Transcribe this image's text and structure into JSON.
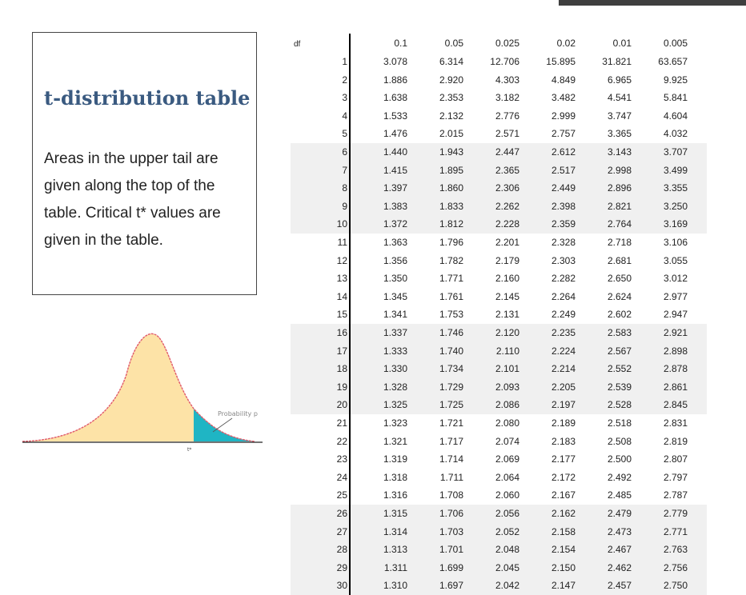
{
  "info": {
    "title": "t-distribution table",
    "description": "Areas in the upper tail are given along the top of the table. Critical t* values are given in the table."
  },
  "figure": {
    "probability_label": "Probability p",
    "tstar_label": "t*",
    "colors": {
      "body": "#fde3a7",
      "tail": "#1fb5c4",
      "outline": "#e05a6a"
    }
  },
  "table": {
    "df_header": "df",
    "tail_areas": [
      "0.1",
      "0.05",
      "0.025",
      "0.02",
      "0.01",
      "0.005"
    ],
    "rows": [
      {
        "df": "1",
        "values": [
          "3.078",
          "6.314",
          "12.706",
          "15.895",
          "31.821",
          "63.657"
        ]
      },
      {
        "df": "2",
        "values": [
          "1.886",
          "2.920",
          "4.303",
          "4.849",
          "6.965",
          "9.925"
        ]
      },
      {
        "df": "3",
        "values": [
          "1.638",
          "2.353",
          "3.182",
          "3.482",
          "4.541",
          "5.841"
        ]
      },
      {
        "df": "4",
        "values": [
          "1.533",
          "2.132",
          "2.776",
          "2.999",
          "3.747",
          "4.604"
        ]
      },
      {
        "df": "5",
        "values": [
          "1.476",
          "2.015",
          "2.571",
          "2.757",
          "3.365",
          "4.032"
        ]
      },
      {
        "df": "6",
        "values": [
          "1.440",
          "1.943",
          "2.447",
          "2.612",
          "3.143",
          "3.707"
        ]
      },
      {
        "df": "7",
        "values": [
          "1.415",
          "1.895",
          "2.365",
          "2.517",
          "2.998",
          "3.499"
        ]
      },
      {
        "df": "8",
        "values": [
          "1.397",
          "1.860",
          "2.306",
          "2.449",
          "2.896",
          "3.355"
        ]
      },
      {
        "df": "9",
        "values": [
          "1.383",
          "1.833",
          "2.262",
          "2.398",
          "2.821",
          "3.250"
        ]
      },
      {
        "df": "10",
        "values": [
          "1.372",
          "1.812",
          "2.228",
          "2.359",
          "2.764",
          "3.169"
        ]
      },
      {
        "df": "11",
        "values": [
          "1.363",
          "1.796",
          "2.201",
          "2.328",
          "2.718",
          "3.106"
        ]
      },
      {
        "df": "12",
        "values": [
          "1.356",
          "1.782",
          "2.179",
          "2.303",
          "2.681",
          "3.055"
        ]
      },
      {
        "df": "13",
        "values": [
          "1.350",
          "1.771",
          "2.160",
          "2.282",
          "2.650",
          "3.012"
        ]
      },
      {
        "df": "14",
        "values": [
          "1.345",
          "1.761",
          "2.145",
          "2.264",
          "2.624",
          "2.977"
        ]
      },
      {
        "df": "15",
        "values": [
          "1.341",
          "1.753",
          "2.131",
          "2.249",
          "2.602",
          "2.947"
        ]
      },
      {
        "df": "16",
        "values": [
          "1.337",
          "1.746",
          "2.120",
          "2.235",
          "2.583",
          "2.921"
        ]
      },
      {
        "df": "17",
        "values": [
          "1.333",
          "1.740",
          "2.110",
          "2.224",
          "2.567",
          "2.898"
        ]
      },
      {
        "df": "18",
        "values": [
          "1.330",
          "1.734",
          "2.101",
          "2.214",
          "2.552",
          "2.878"
        ]
      },
      {
        "df": "19",
        "values": [
          "1.328",
          "1.729",
          "2.093",
          "2.205",
          "2.539",
          "2.861"
        ]
      },
      {
        "df": "20",
        "values": [
          "1.325",
          "1.725",
          "2.086",
          "2.197",
          "2.528",
          "2.845"
        ]
      },
      {
        "df": "21",
        "values": [
          "1.323",
          "1.721",
          "2.080",
          "2.189",
          "2.518",
          "2.831"
        ]
      },
      {
        "df": "22",
        "values": [
          "1.321",
          "1.717",
          "2.074",
          "2.183",
          "2.508",
          "2.819"
        ]
      },
      {
        "df": "23",
        "values": [
          "1.319",
          "1.714",
          "2.069",
          "2.177",
          "2.500",
          "2.807"
        ]
      },
      {
        "df": "24",
        "values": [
          "1.318",
          "1.711",
          "2.064",
          "2.172",
          "2.492",
          "2.797"
        ]
      },
      {
        "df": "25",
        "values": [
          "1.316",
          "1.708",
          "2.060",
          "2.167",
          "2.485",
          "2.787"
        ]
      },
      {
        "df": "26",
        "values": [
          "1.315",
          "1.706",
          "2.056",
          "2.162",
          "2.479",
          "2.779"
        ]
      },
      {
        "df": "27",
        "values": [
          "1.314",
          "1.703",
          "2.052",
          "2.158",
          "2.473",
          "2.771"
        ]
      },
      {
        "df": "28",
        "values": [
          "1.313",
          "1.701",
          "2.048",
          "2.154",
          "2.467",
          "2.763"
        ]
      },
      {
        "df": "29",
        "values": [
          "1.311",
          "1.699",
          "2.045",
          "2.150",
          "2.462",
          "2.756"
        ]
      },
      {
        "df": "30",
        "values": [
          "1.310",
          "1.697",
          "2.042",
          "2.147",
          "2.457",
          "2.750"
        ]
      }
    ]
  }
}
